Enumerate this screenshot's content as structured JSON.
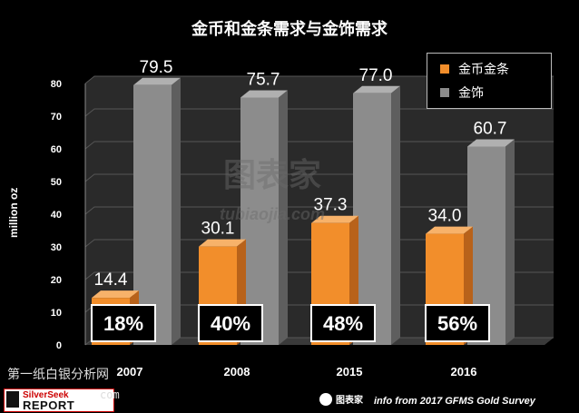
{
  "chart_data": {
    "type": "bar",
    "title": "金币和金条需求与金饰需求",
    "ylabel": "million oz",
    "ylim": [
      0,
      80
    ],
    "yticks": [
      0,
      10,
      20,
      30,
      40,
      50,
      60,
      70,
      80
    ],
    "categories": [
      "2007",
      "2008",
      "2015",
      "2016"
    ],
    "series": [
      {
        "name": "金币金条",
        "values": [
          14.4,
          30.1,
          37.3,
          34.0
        ],
        "color": "#f28e2b"
      },
      {
        "name": "金饰",
        "values": [
          79.5,
          75.7,
          77.0,
          60.7
        ],
        "color": "#8c8c8c"
      }
    ],
    "percent_labels": [
      "18%",
      "40%",
      "48%",
      "56%"
    ],
    "legend_position": "top-right",
    "grid": true
  },
  "watermark": {
    "cn": "图表家",
    "pinyin": "tubiaojia.com"
  },
  "footer": {
    "left_text": "第一纸白银分析网",
    "left_domain": "com",
    "logo_top": "SilverSeek",
    "logo_bottom": "REPORT",
    "chart_logo": "图表家",
    "source": "info from  2017 GFMS Gold Survey"
  }
}
